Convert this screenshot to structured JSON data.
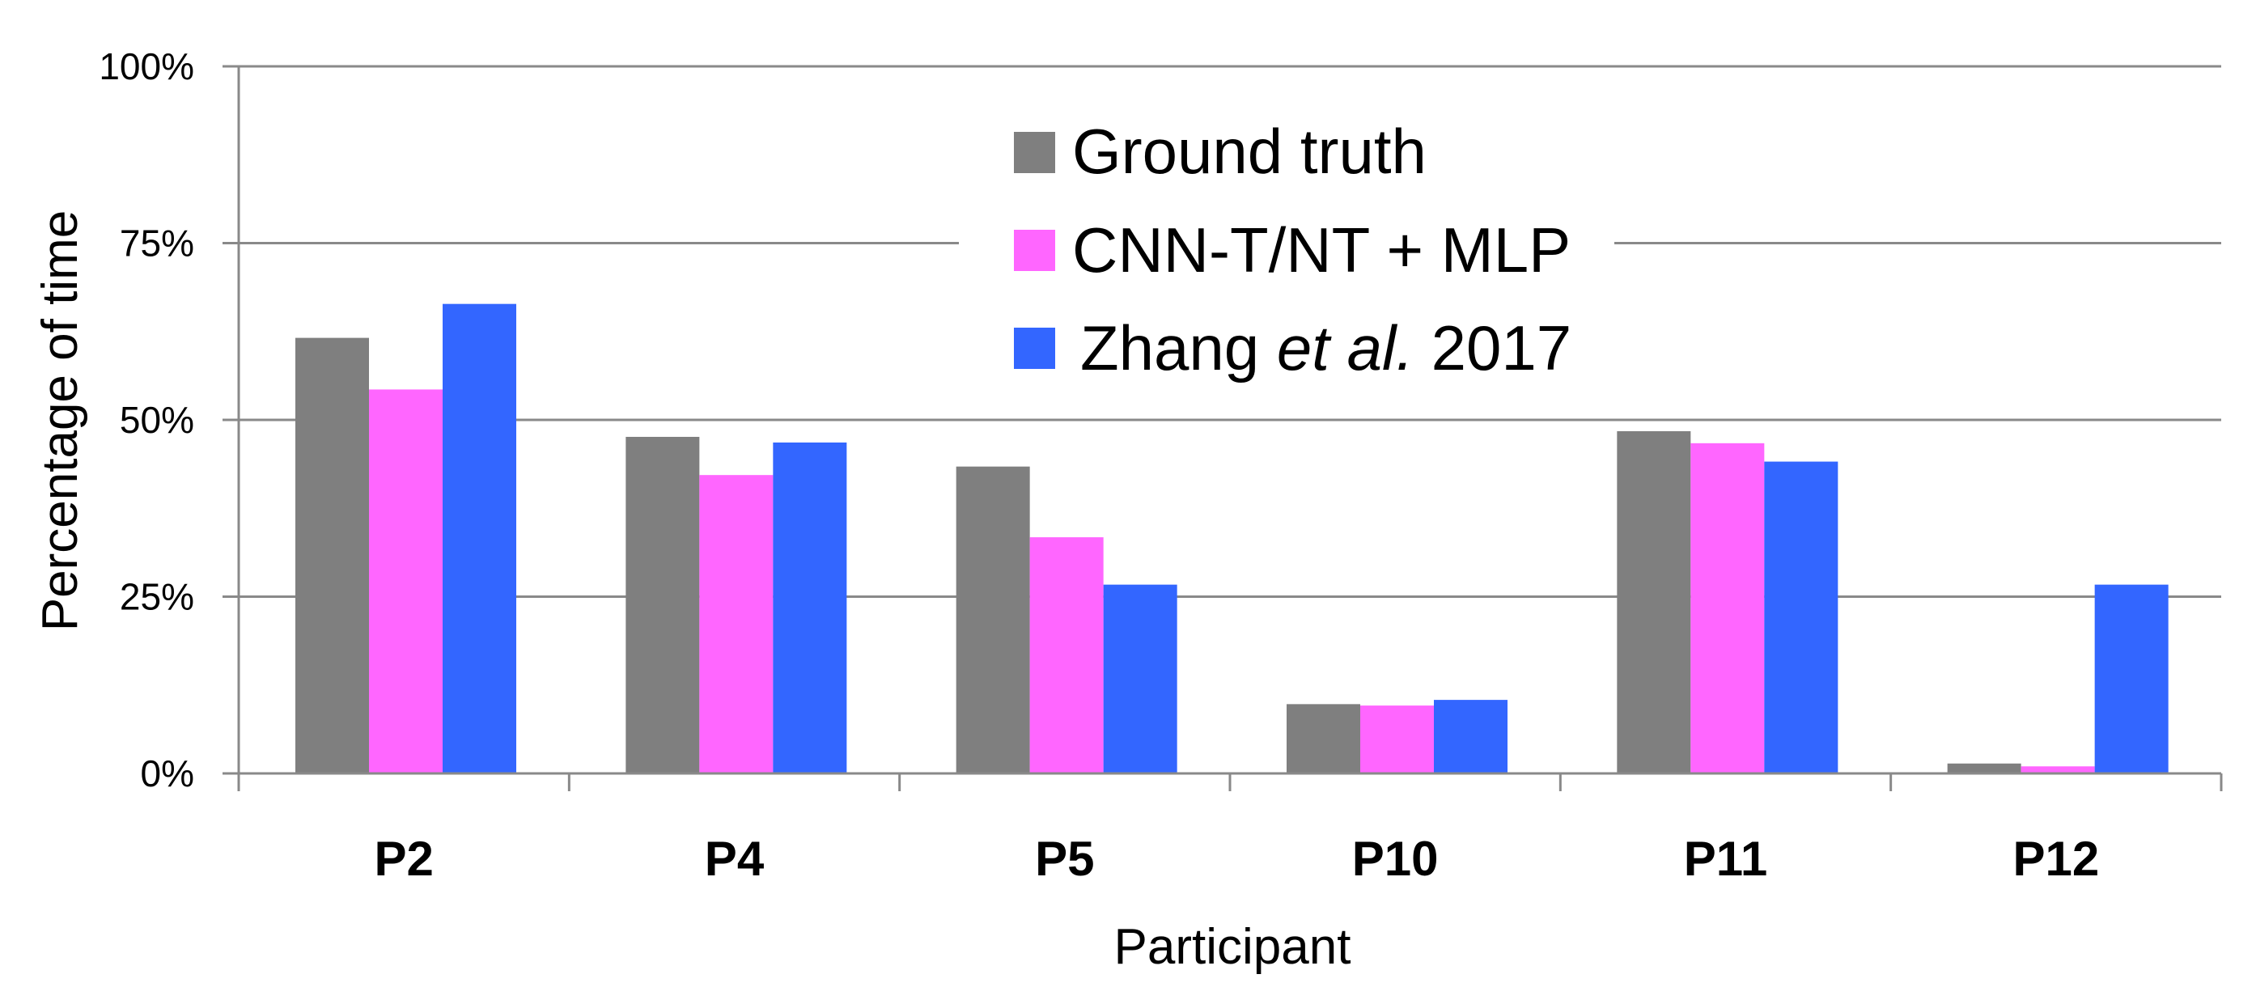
{
  "chart_data": {
    "type": "bar",
    "xlabel": "Participant",
    "ylabel": "Percentage of time",
    "ylim": [
      0,
      100
    ],
    "y_ticks": [
      "0%",
      "25%",
      "50%",
      "75%",
      "100%"
    ],
    "y_tick_values": [
      0,
      25,
      50,
      75,
      100
    ],
    "categories": [
      "P2",
      "P4",
      "P5",
      "P10",
      "P11",
      "P12"
    ],
    "series": [
      {
        "name": "Ground truth",
        "color": "#7f7f7f",
        "values": [
          61.6,
          47.6,
          43.4,
          9.8,
          48.4,
          1.4
        ]
      },
      {
        "name": "CNN-T/NT + MLP",
        "color": "#ff66ff",
        "values": [
          54.3,
          42.2,
          33.4,
          9.6,
          46.7,
          1.0
        ]
      },
      {
        "name": "Zhang et al. 2017",
        "name_parts": [
          "Zhang ",
          "et al.",
          " 2017"
        ],
        "color": "#3366ff",
        "values": [
          66.4,
          46.8,
          26.7,
          10.4,
          44.1,
          26.7
        ]
      }
    ],
    "grid": true,
    "legend_position": "top-center"
  }
}
